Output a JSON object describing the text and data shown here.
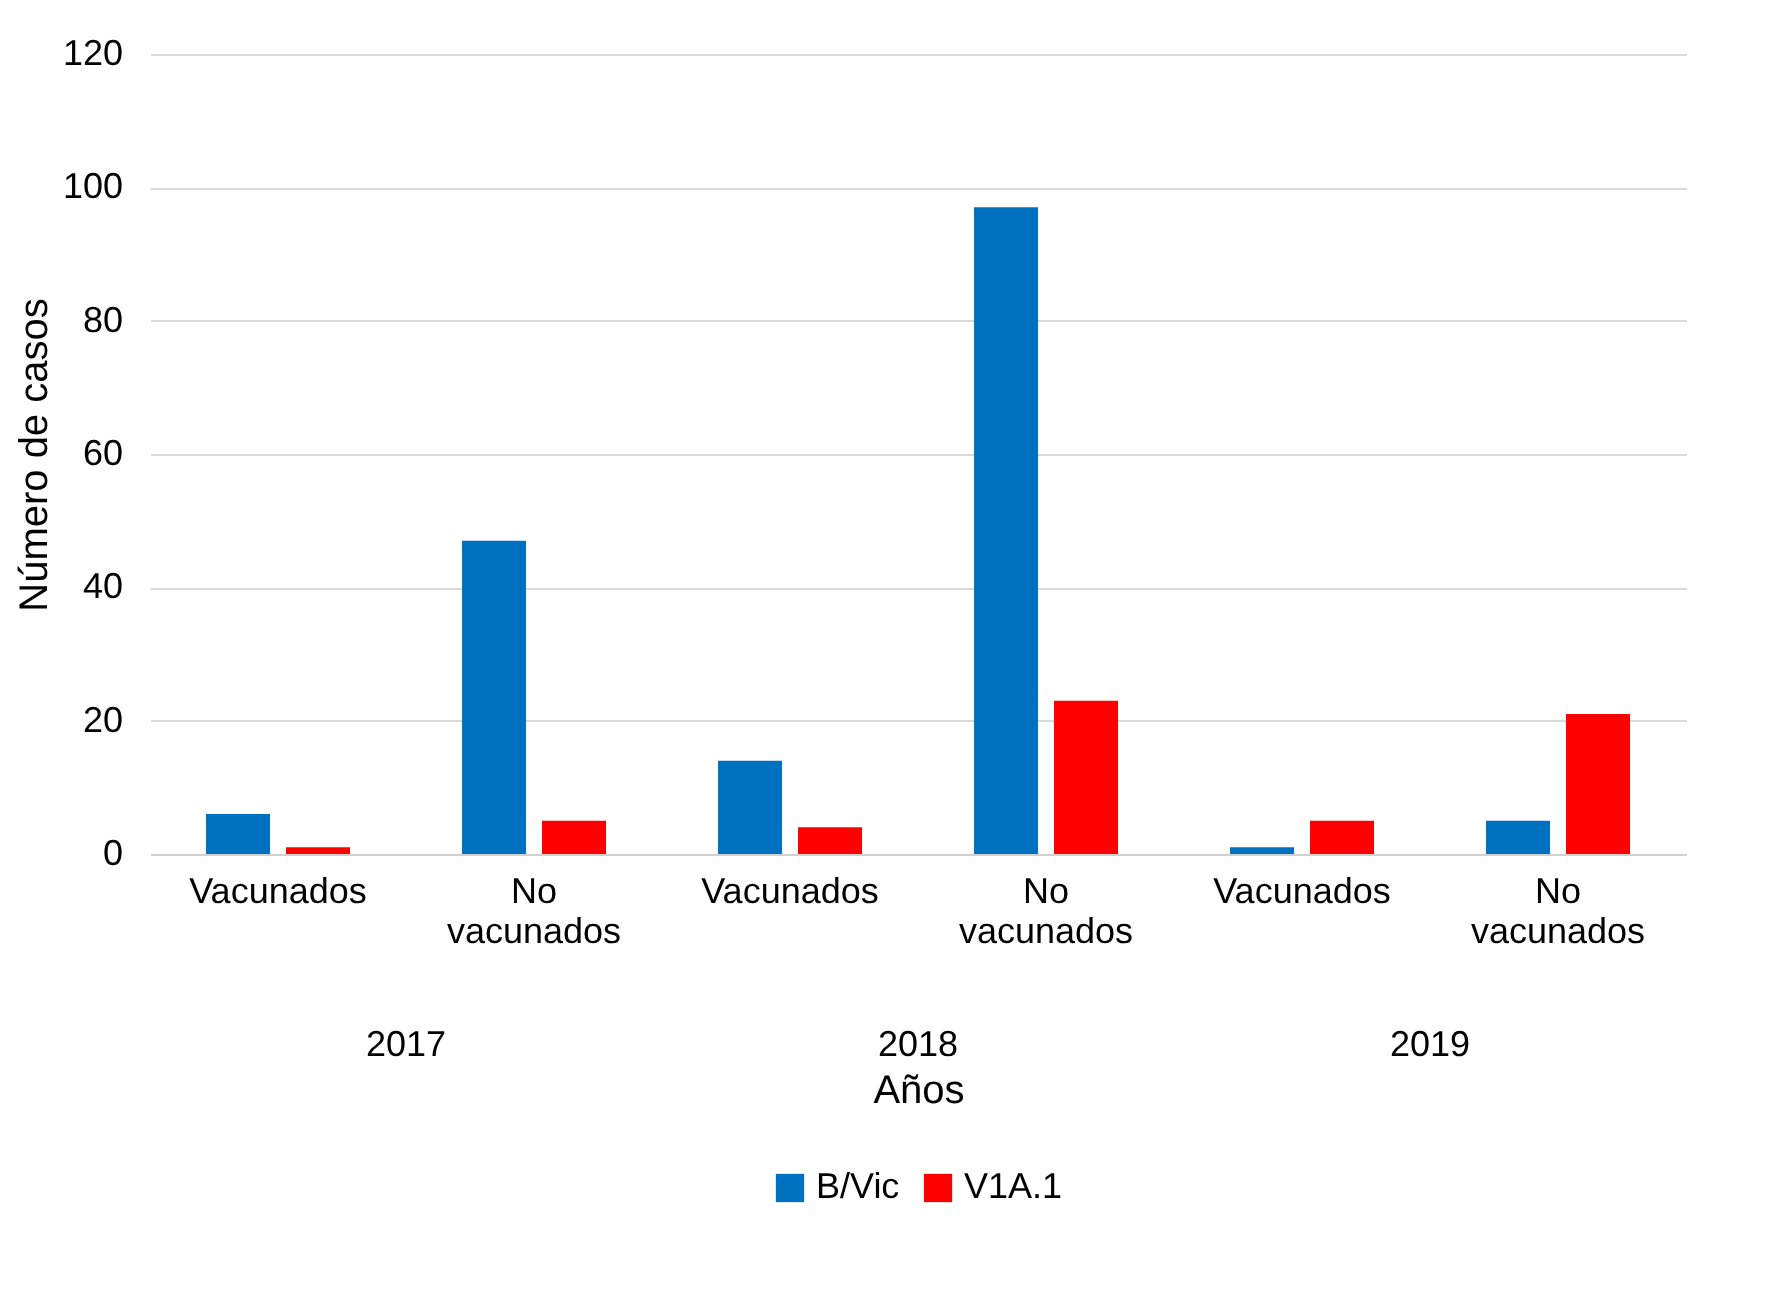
{
  "chart_data": {
    "type": "bar",
    "xlabel": "Años",
    "ylabel": "Número de casos",
    "categories": [
      "Vacunados",
      "No vacunados",
      "Vacunados",
      "No vacunados",
      "Vacunados",
      "No vacunados"
    ],
    "series": [
      {
        "name": "B/Vic",
        "color": "#0070c0",
        "values": [
          6,
          47,
          14,
          97,
          1,
          5
        ]
      },
      {
        "name": "V1A.1",
        "color": "#ff0000",
        "values": [
          1,
          5,
          4,
          23,
          5,
          21
        ]
      }
    ],
    "annotations": [
      "2017",
      "2018",
      "2019"
    ],
    "ylim": [
      0,
      120
    ],
    "yticks": [
      0,
      20,
      40,
      60,
      80,
      100,
      120
    ],
    "grid": "y",
    "legend": "bottom"
  }
}
